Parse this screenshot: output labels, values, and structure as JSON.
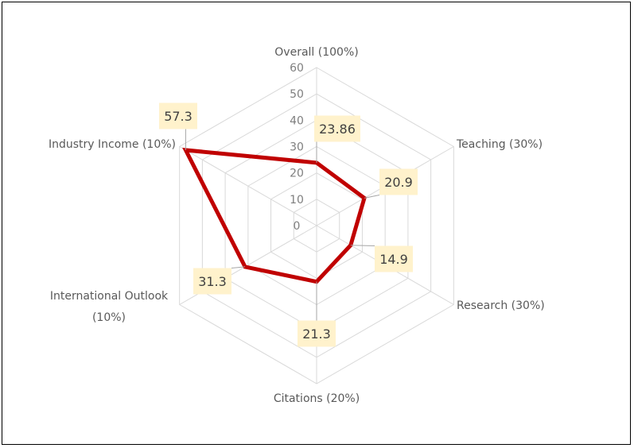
{
  "chart_data": {
    "type": "radar",
    "categories": [
      "Overall (100%)",
      "Teaching (30%)",
      "Research (30%)",
      "Citations (20%)",
      "International Outlook (10%)",
      "Industry Income (10%)"
    ],
    "series": [
      {
        "name": "",
        "values": [
          23.86,
          20.9,
          14.9,
          21.3,
          31.3,
          57.3
        ],
        "color": "#c00000"
      }
    ],
    "data_labels": [
      "23.86",
      "20.9",
      "14.9",
      "21.3",
      "31.3",
      "57.3"
    ],
    "rlim": [
      0,
      60
    ],
    "ticks": [
      "0",
      "10",
      "20",
      "30",
      "40",
      "50",
      "60"
    ],
    "grid": true,
    "legend": "none"
  }
}
